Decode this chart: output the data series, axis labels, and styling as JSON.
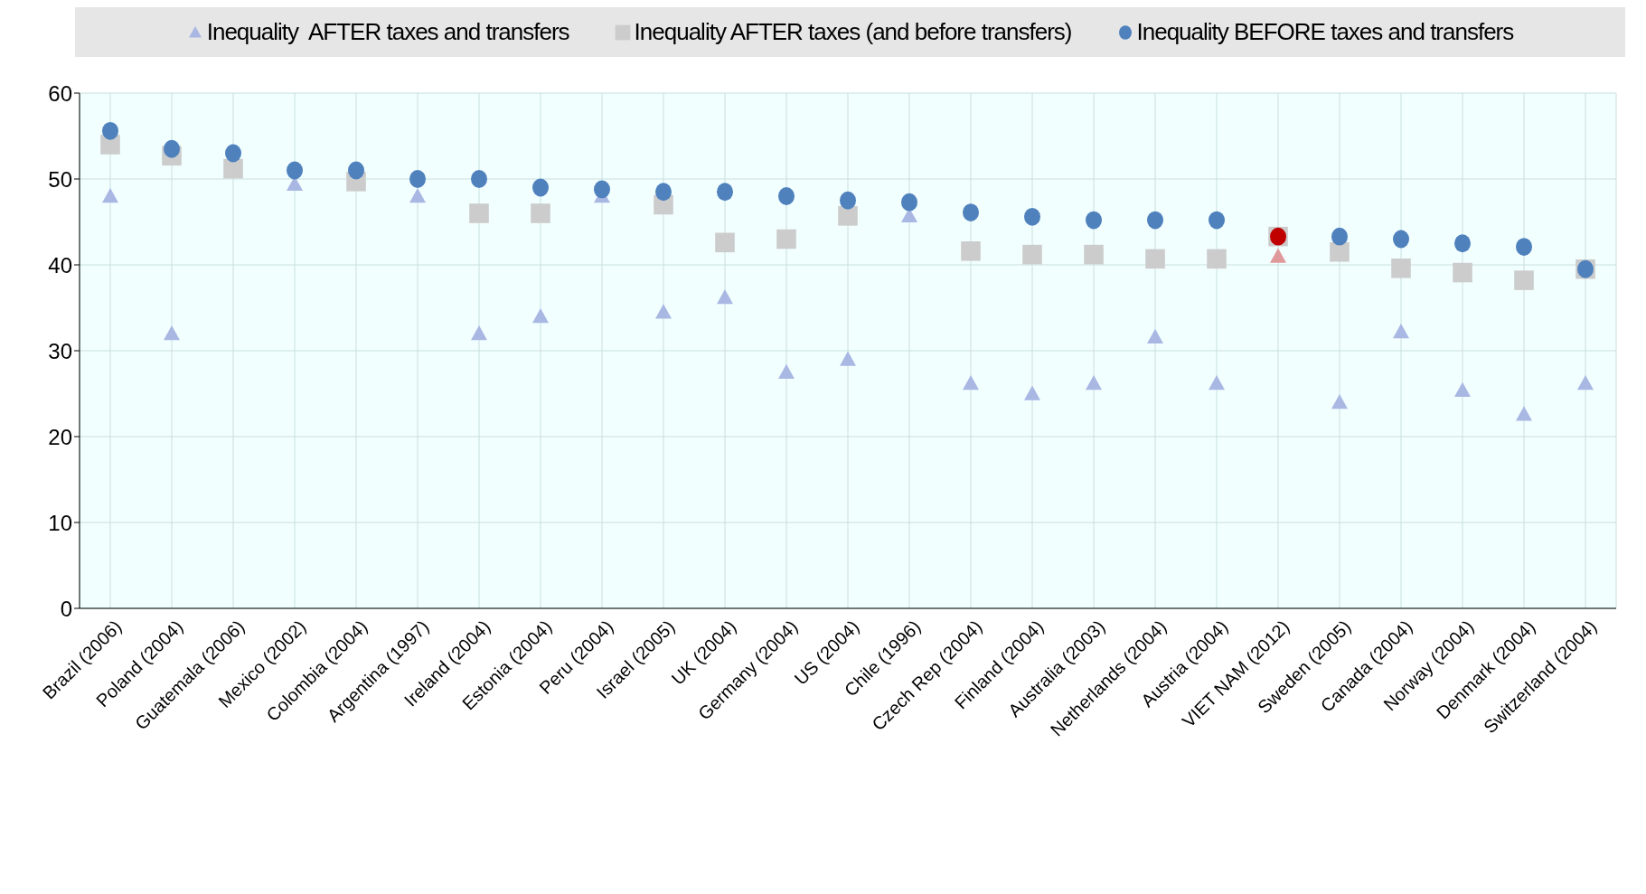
{
  "chart_data": {
    "type": "scatter",
    "categories": [
      "Brazil (2006)",
      "Poland (2004)",
      "Guatemala (2006)",
      "Mexico (2002)",
      "Colombia (2004)",
      "Argentina (1997)",
      "Ireland (2004)",
      "Estonia (2004)",
      "Peru (2004)",
      "Israel (2005)",
      "UK (2004)",
      "Germany (2004)",
      "US (2004)",
      "Chile (1996)",
      "Czech Rep (2004)",
      "Finland (2004)",
      "Australia (2003)",
      "Netherlands (2004)",
      "Austria (2004)",
      "VIET NAM (2012)",
      "Sweden (2005)",
      "Canada (2004)",
      "Norway (2004)",
      "Denmark (2004)",
      "Switzerland (2004)"
    ],
    "series": [
      {
        "name": "Inequality  AFTER taxes and transfers",
        "marker": "triangle",
        "color": "#a9b7e3",
        "colors": [
          "#a9b7e3",
          "#a9b7e3",
          null,
          "#a9b7e3",
          null,
          "#a9b7e3",
          "#a9b7e3",
          "#a9b7e3",
          "#a9b7e3",
          "#a9b7e3",
          "#a9b7e3",
          "#a9b7e3",
          "#a9b7e3",
          "#a9b7e3",
          "#a9b7e3",
          "#a9b7e3",
          "#a9b7e3",
          "#a9b7e3",
          "#a9b7e3",
          "#e0999a",
          "#a9b7e3",
          "#a9b7e3",
          "#a9b7e3",
          "#a9b7e3",
          "#a9b7e3"
        ],
        "values": [
          48,
          32,
          null,
          49.4,
          null,
          48,
          32,
          34,
          48,
          34.5,
          36.2,
          27.5,
          29,
          45.7,
          26.2,
          25,
          26.2,
          31.6,
          26.2,
          41,
          24,
          32.2,
          25.4,
          22.6,
          26.2
        ]
      },
      {
        "name": "Inequality AFTER taxes (and before transfers)",
        "marker": "square",
        "color": "#cccccc",
        "values": [
          54,
          52.7,
          51.2,
          null,
          49.7,
          null,
          46,
          46,
          null,
          47,
          42.6,
          43,
          45.7,
          null,
          41.6,
          41.2,
          41.2,
          40.7,
          40.7,
          43.3,
          41.5,
          39.6,
          39.1,
          38.2,
          39.5
        ]
      },
      {
        "name": "Inequality BEFORE taxes and transfers",
        "marker": "circle",
        "color": "#4f81bd",
        "colors": [
          "#4f81bd",
          "#4f81bd",
          "#4f81bd",
          "#4f81bd",
          "#4f81bd",
          "#4f81bd",
          "#4f81bd",
          "#4f81bd",
          "#4f81bd",
          "#4f81bd",
          "#4f81bd",
          "#4f81bd",
          "#4f81bd",
          "#4f81bd",
          "#4f81bd",
          "#4f81bd",
          "#4f81bd",
          "#4f81bd",
          "#4f81bd",
          "#c00000",
          "#4f81bd",
          "#4f81bd",
          "#4f81bd",
          "#4f81bd",
          "#4f81bd"
        ],
        "values": [
          55.6,
          53.5,
          53,
          51,
          51,
          50,
          50,
          49,
          48.8,
          48.5,
          48.5,
          48,
          47.5,
          47.3,
          46.1,
          45.6,
          45.2,
          45.2,
          45.2,
          43.3,
          43.3,
          43,
          42.5,
          42.1,
          39.5
        ]
      }
    ],
    "ylim": [
      0,
      60
    ],
    "yticks": [
      0,
      10,
      20,
      30,
      40,
      50,
      60
    ],
    "grid": true,
    "legend": "top"
  }
}
